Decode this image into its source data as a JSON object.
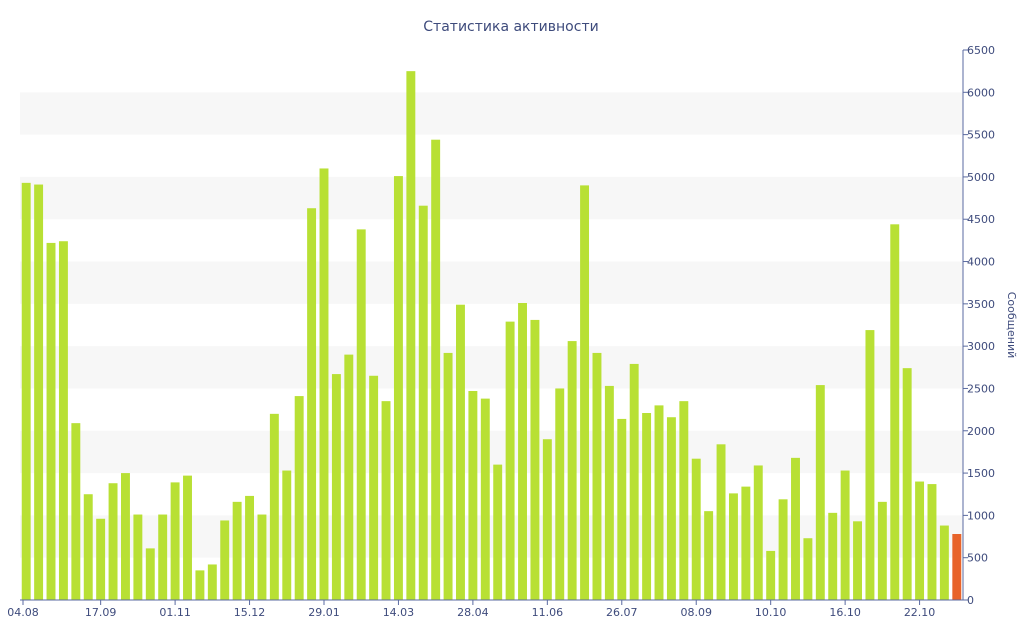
{
  "chart_data": {
    "type": "bar",
    "title": "Статистика активности",
    "ylabel": "Сообщений",
    "ylim": [
      0,
      6500
    ],
    "y_ticks": [
      0,
      500,
      1000,
      1500,
      2000,
      2500,
      3000,
      3500,
      4000,
      4500,
      5000,
      5500,
      6000,
      6500
    ],
    "y_axis_side": "right",
    "grid": "alternating horizontal bands",
    "x_tick_labels": [
      "04.08",
      "17.09",
      "01.11",
      "15.12",
      "29.01",
      "14.03",
      "28.04",
      "11.06",
      "26.07",
      "08.09",
      "10.10",
      "16.10",
      "22.10"
    ],
    "colors": {
      "bar": "#b8e034",
      "highlight_bar": "#e8632a",
      "text": "#3e4b7c",
      "axis": "#5a6aa0",
      "band": "#f7f7f7"
    },
    "highlight_last": true,
    "values": [
      4930,
      4910,
      4220,
      4240,
      2090,
      1250,
      960,
      1380,
      1500,
      1010,
      610,
      1010,
      1390,
      1470,
      350,
      420,
      940,
      1160,
      1230,
      1010,
      2200,
      1530,
      2410,
      4630,
      5100,
      2670,
      2900,
      4380,
      2650,
      2350,
      5010,
      6250,
      4660,
      5440,
      2920,
      3490,
      2470,
      2380,
      1600,
      3290,
      3510,
      3310,
      1900,
      2500,
      3060,
      4900,
      2920,
      2530,
      2140,
      2790,
      2210,
      2300,
      2160,
      2350,
      1670,
      1050,
      1840,
      1260,
      1340,
      1590,
      580,
      1190,
      1680,
      730,
      2540,
      1030,
      1530,
      930,
      3190,
      1160,
      4440,
      2740,
      1400,
      1370,
      880,
      780
    ]
  }
}
